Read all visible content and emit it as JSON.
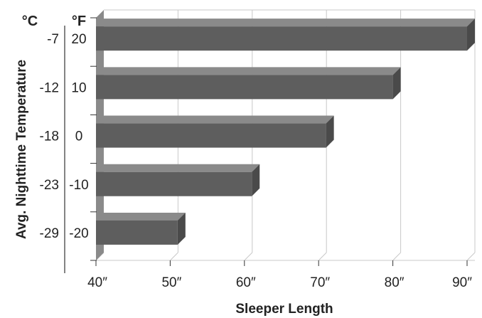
{
  "chart_data": {
    "type": "bar",
    "orientation": "horizontal",
    "style": "3d",
    "xlabel": "Sleeper Length",
    "ylabel": "Avg. Nighttime Temperature",
    "unit_c": "°C",
    "unit_f": "°F",
    "categories": [
      {
        "c": "-7",
        "f": "20"
      },
      {
        "c": "-12",
        "f": "10"
      },
      {
        "c": "-18",
        "f": "0"
      },
      {
        "c": "-23",
        "f": "-10"
      },
      {
        "c": "-29",
        "f": "-20"
      }
    ],
    "values": [
      90,
      80,
      71,
      61,
      51
    ],
    "x_ticks": [
      "40″",
      "50″",
      "60″",
      "70″",
      "80″",
      "90″"
    ],
    "x_tick_values": [
      40,
      50,
      60,
      70,
      80,
      90
    ],
    "xlim": [
      40,
      90
    ],
    "grid": true,
    "legend": "none",
    "colors": {
      "bar": "#5e5e5e",
      "bar_top": "#8a8a8a",
      "wall": "#8a8a8a",
      "grid": "#c8c8c8",
      "text": "#222222"
    }
  }
}
